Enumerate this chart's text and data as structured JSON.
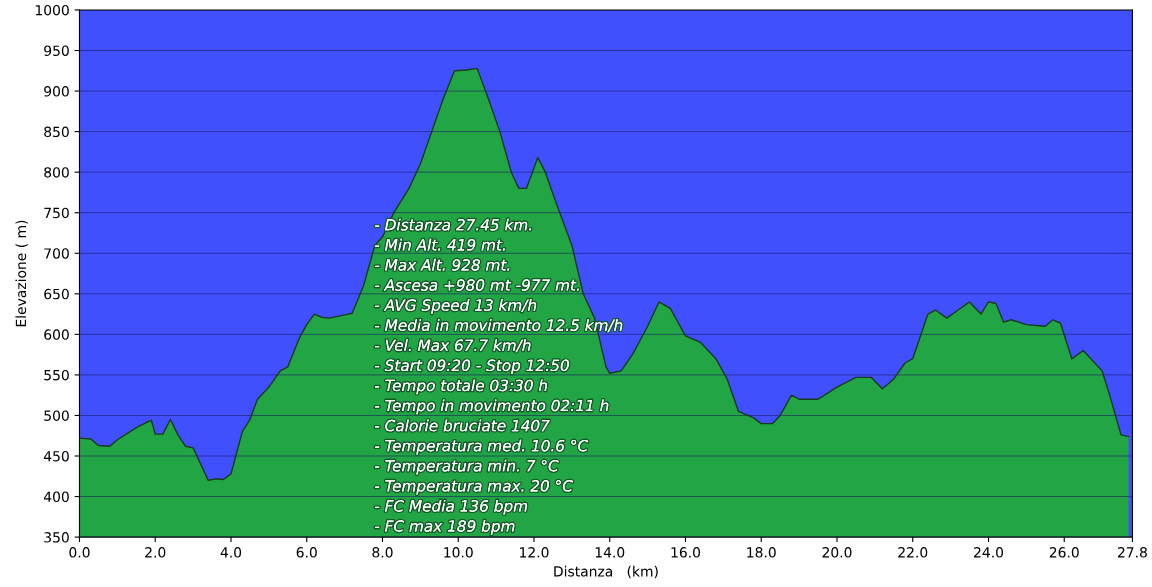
{
  "chart_data": {
    "type": "area",
    "xlabel": "Distanza   (km)",
    "ylabel": "Elevazione ( m)",
    "x": [
      0.0,
      0.3,
      0.5,
      0.8,
      1.0,
      1.5,
      1.8,
      1.9,
      2.0,
      2.2,
      2.4,
      2.6,
      2.8,
      3.0,
      3.3,
      3.4,
      3.6,
      3.8,
      4.0,
      4.3,
      4.5,
      4.7,
      5.0,
      5.3,
      5.5,
      5.8,
      6.0,
      6.2,
      6.4,
      6.6,
      7.0,
      7.2,
      7.5,
      7.8,
      8.0,
      8.3,
      8.7,
      9.0,
      9.3,
      9.6,
      9.9,
      10.2,
      10.5,
      10.8,
      11.1,
      11.4,
      11.6,
      11.8,
      12.0,
      12.1,
      12.3,
      12.6,
      13.0,
      13.3,
      13.6,
      13.9,
      14.0,
      14.3,
      14.6,
      15.0,
      15.3,
      15.6,
      16.0,
      16.4,
      16.8,
      17.1,
      17.4,
      17.8,
      18.0,
      18.3,
      18.5,
      18.8,
      19.0,
      19.5,
      20.0,
      20.5,
      20.9,
      21.2,
      21.5,
      21.8,
      22.0,
      22.4,
      22.6,
      22.9,
      23.2,
      23.5,
      23.8,
      24.0,
      24.2,
      24.4,
      24.6,
      25.0,
      25.5,
      25.7,
      25.9,
      26.2,
      26.5,
      27.0,
      27.2,
      27.5,
      27.7
    ],
    "series": [
      {
        "color": "#22a545",
        "values": [
          472,
          471,
          463,
          462,
          470,
          485,
          492,
          494,
          477,
          477,
          495,
          476,
          462,
          460,
          430,
          420,
          422,
          421,
          428,
          480,
          495,
          520,
          535,
          555,
          560,
          595,
          612,
          625,
          621,
          620,
          624,
          626,
          660,
          710,
          720,
          750,
          780,
          810,
          850,
          890,
          925,
          926,
          928,
          890,
          850,
          800,
          780,
          780,
          805,
          818,
          800,
          760,
          710,
          650,
          620,
          560,
          552,
          555,
          575,
          610,
          640,
          632,
          598,
          590,
          570,
          545,
          505,
          497,
          490,
          490,
          500,
          525,
          520,
          520,
          535,
          547,
          547,
          533,
          545,
          565,
          570,
          625,
          630,
          620,
          630,
          640,
          625,
          640,
          638,
          615,
          618,
          612,
          610,
          618,
          614,
          570,
          580,
          555,
          525,
          476,
          474
        ]
      }
    ],
    "xlim": [
      0,
      27.8
    ],
    "ylim": [
      350,
      1000
    ],
    "xticks": [
      {
        "value": 0,
        "label": "0.0"
      },
      {
        "value": 2,
        "label": "2.0"
      },
      {
        "value": 4,
        "label": "4.0"
      },
      {
        "value": 6,
        "label": "6.0"
      },
      {
        "value": 8,
        "label": "8.0"
      },
      {
        "value": 10,
        "label": "10.0"
      },
      {
        "value": 12,
        "label": "12.0"
      },
      {
        "value": 14,
        "label": "14.0"
      },
      {
        "value": 16,
        "label": "16.0"
      },
      {
        "value": 18,
        "label": "18.0"
      },
      {
        "value": 20,
        "label": "20.0"
      },
      {
        "value": 22,
        "label": "22.0"
      },
      {
        "value": 24,
        "label": "24.0"
      },
      {
        "value": 26,
        "label": "26.0"
      },
      {
        "value": 27.8,
        "label": "27.8"
      }
    ],
    "yticks": [
      350,
      400,
      450,
      500,
      550,
      600,
      650,
      700,
      750,
      800,
      850,
      900,
      950,
      1000
    ],
    "grid": "y",
    "annotations": [
      "- Distanza 27.45 km.",
      "- Min Alt. 419 mt.",
      "- Max Alt. 928 mt.",
      "- Ascesa +980 mt -977 mt.",
      "- AVG Speed 13 km/h",
      "- Media in movimento 12.5 km/h",
      "- Vel. Max 67.7 km/h",
      "- Start 09:20 - Stop 12:50",
      "- Tempo totale 03:30 h",
      "- Tempo in movimento 02:11 h",
      "- Calorie bruciate 1407",
      "- Temperatura med. 10.6 °C",
      "- Temperatura min. 7 °C",
      "- Temperatura max. 20 °C",
      "- FC Media 136 bpm",
      "- FC max 189 bpm"
    ]
  }
}
